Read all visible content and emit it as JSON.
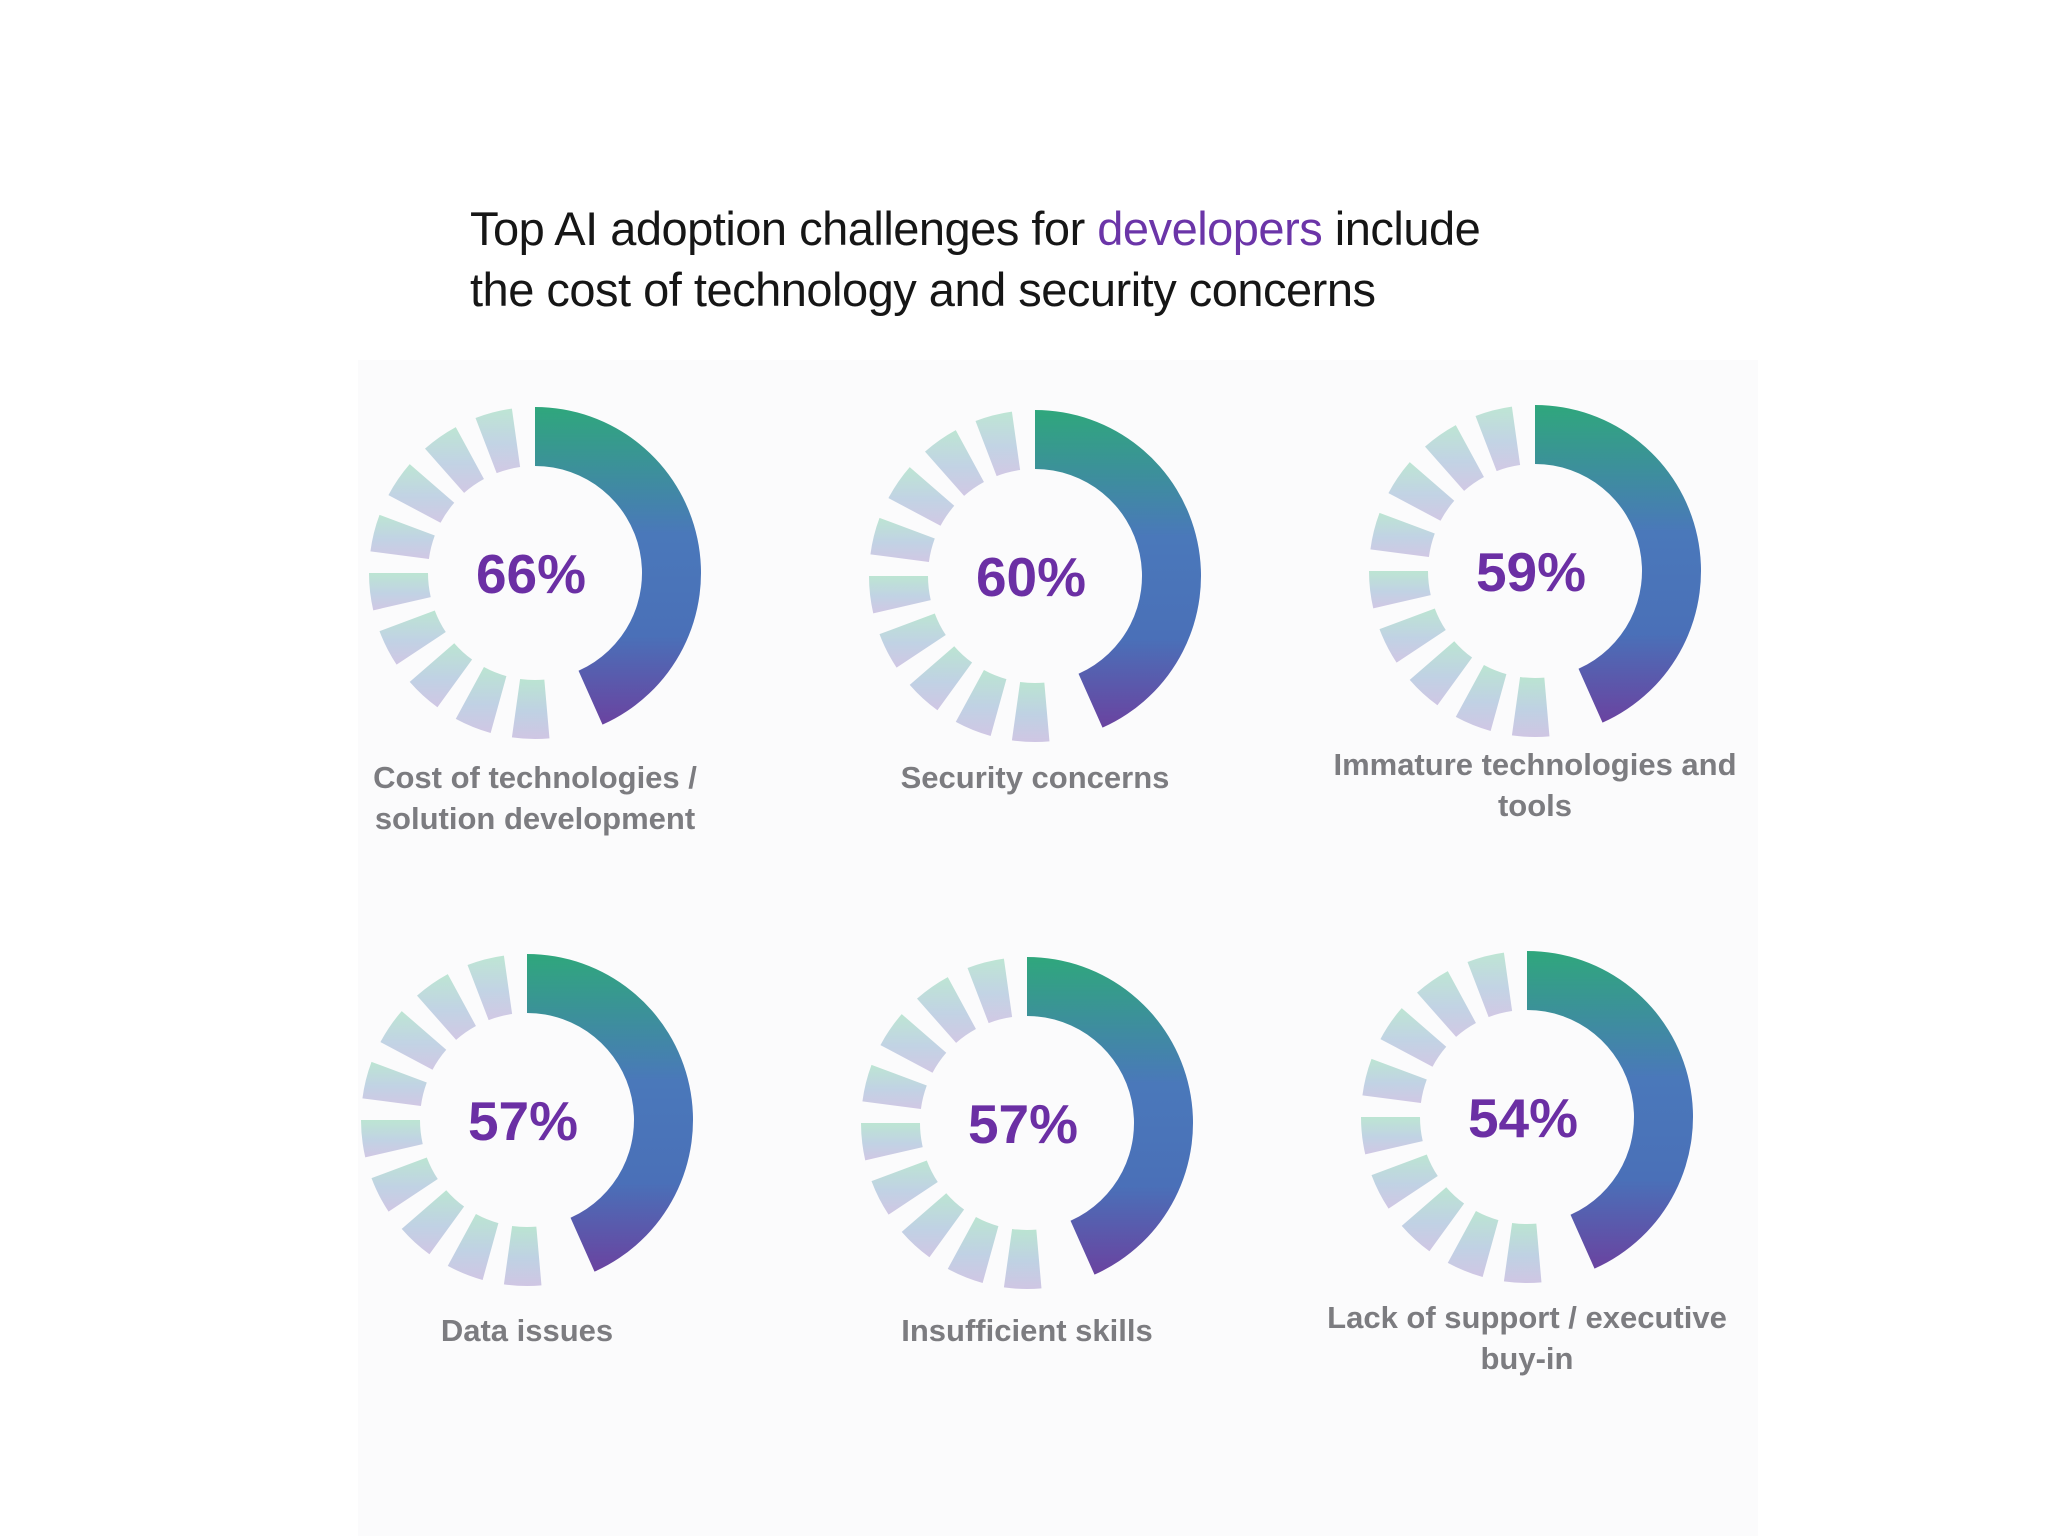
{
  "title": {
    "before": "Top AI adoption challenges for ",
    "highlight": "developers",
    "after_line1": " include",
    "line2": "the cost of technology and security concerns"
  },
  "colors": {
    "highlight": "#6b35a8",
    "ring_start": "#2fa77c",
    "ring_mid": "#4a78ba",
    "ring_end": "#6a43a0",
    "percent_text": "#6b2fa4",
    "label_text": "#7c7c80"
  },
  "chart_data": {
    "type": "donut",
    "title": "",
    "unit": "%",
    "categories": [
      "Cost of technologies / solution development",
      "Security concerns",
      "Immature technologies and tools",
      "Data issues",
      "Insufficient skills",
      "Lack of support / executive buy-in"
    ],
    "values": [
      66,
      60,
      59,
      57,
      57,
      54
    ],
    "items": [
      {
        "label_lines": [
          "Cost of technologies /",
          "solution development"
        ],
        "value": 66,
        "value_label": "66%"
      },
      {
        "label_lines": [
          "Security concerns"
        ],
        "value": 60,
        "value_label": "60%"
      },
      {
        "label_lines": [
          "Immature technologies and",
          "tools"
        ],
        "value": 59,
        "value_label": "59%"
      },
      {
        "label_lines": [
          "Data issues"
        ],
        "value": 57,
        "value_label": "57%"
      },
      {
        "label_lines": [
          "Insufficient skills"
        ],
        "value": 57,
        "value_label": "57%"
      },
      {
        "label_lines": [
          "Lack of support / executive",
          "buy-in"
        ],
        "value": 54,
        "value_label": "54%"
      }
    ]
  }
}
